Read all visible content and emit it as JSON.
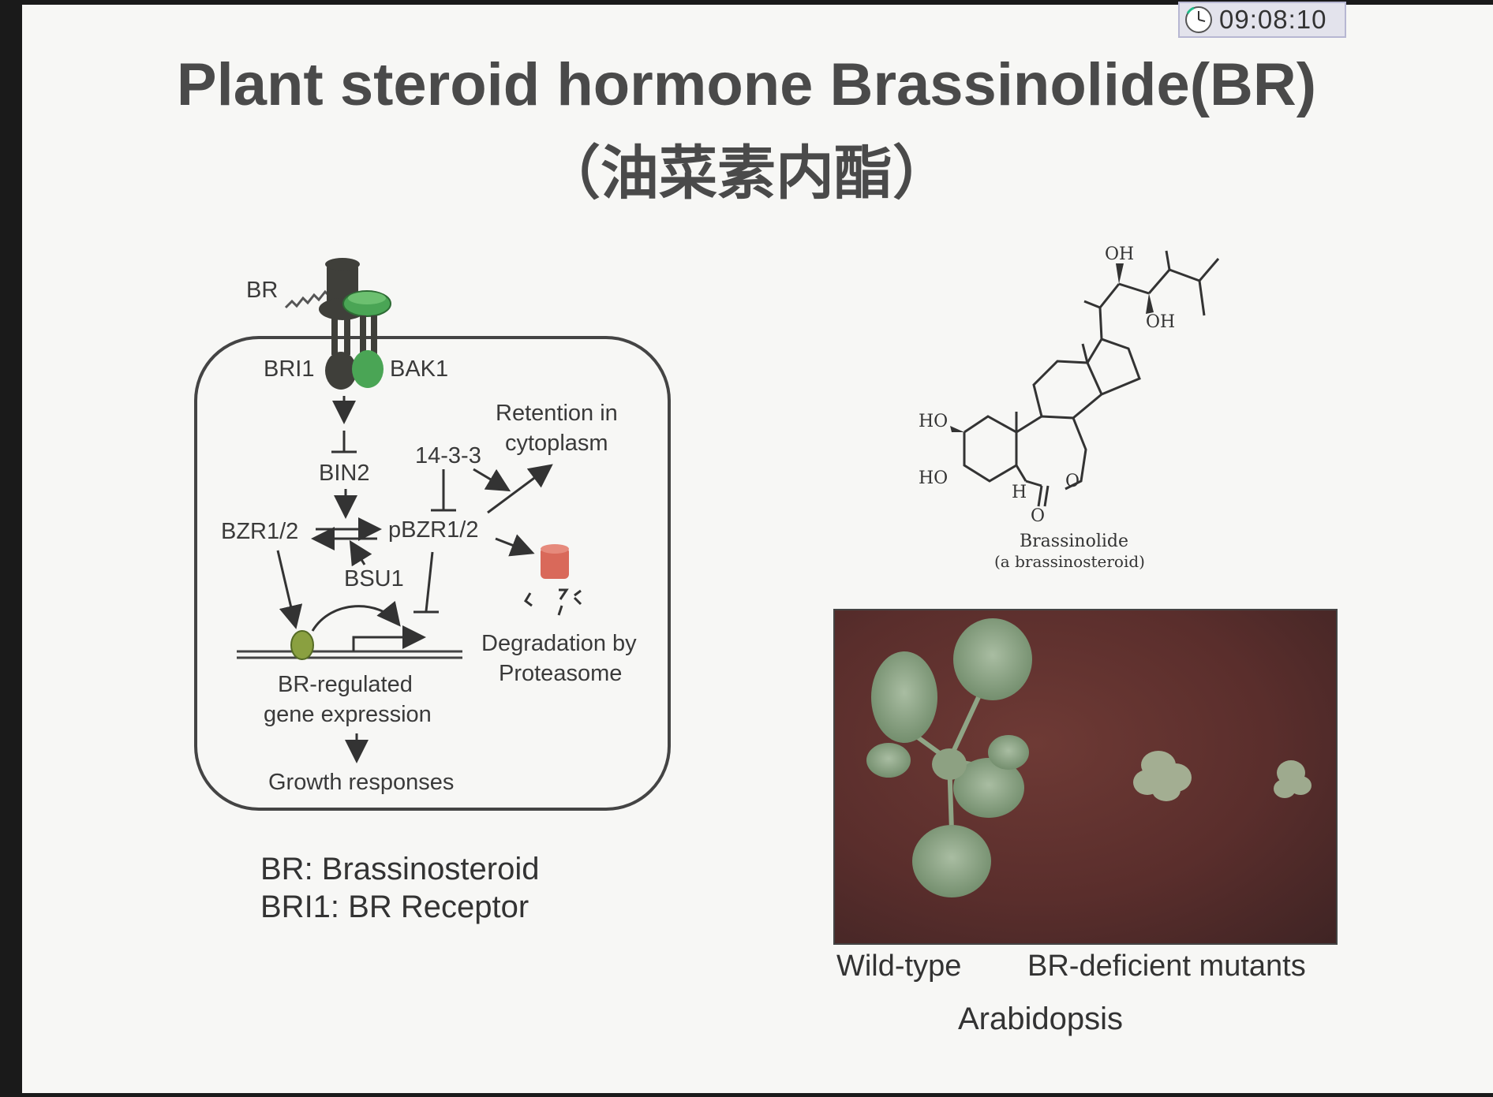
{
  "timer": {
    "time": "09:08:10",
    "icon": "clock-icon"
  },
  "slide": {
    "title": "Plant steroid hormone Brassinolide(BR)",
    "subtitle": "（油菜素内酯）"
  },
  "pathway": {
    "br": "BR",
    "bri1": "BRI1",
    "bak1": "BAK1",
    "bin2": "BIN2",
    "bzr": "BZR1/2",
    "pbzr": "pBZR1/2",
    "p1433": "14-3-3",
    "bsu1": "BSU1",
    "retention_line1": "Retention in",
    "retention_line2": "cytoplasm",
    "degradation_line1": "Degradation by",
    "degradation_line2": "Proteasome",
    "gene_line1": "BR-regulated",
    "gene_line2": "gene expression",
    "growth": "Growth responses"
  },
  "legend": {
    "line1": "BR: Brassinosteroid",
    "line2": "BRI1: BR Receptor"
  },
  "structure": {
    "oh_top": "OH",
    "oh_mid": "OH",
    "ho_upper": "HO",
    "ho_lower": "HO",
    "h": "H",
    "o_ring": "O",
    "o_carbonyl": "O",
    "name": "Brassinolide",
    "class": "(a brassinosteroid)"
  },
  "photo": {
    "caption_wild": "Wild-type",
    "caption_mutant": "BR-deficient  mutants",
    "caption_species": "Arabidopsis"
  },
  "colors": {
    "receptor_dark": "#3f3f3a",
    "bak1_green": "#4aa555",
    "bzr_dot": "#8aa040",
    "proteasome": "#d9695a",
    "photo_bg": "#5c302c",
    "leaf": "#8fa586"
  }
}
